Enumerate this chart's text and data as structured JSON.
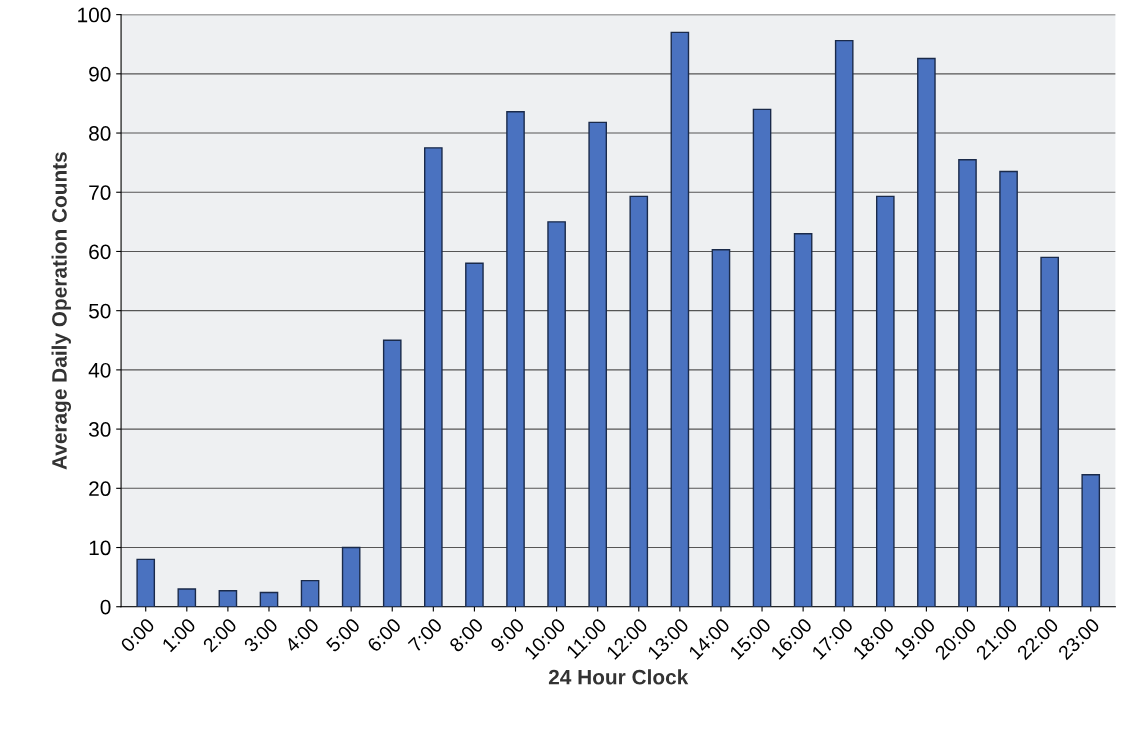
{
  "chart_data": {
    "type": "bar",
    "xlabel": "24 Hour Clock",
    "ylabel": "Average Daily Operation Counts",
    "categories": [
      "0:00",
      "1:00",
      "2:00",
      "3:00",
      "4:00",
      "5:00",
      "6:00",
      "7:00",
      "8:00",
      "9:00",
      "10:00",
      "11:00",
      "12:00",
      "13:00",
      "14:00",
      "15:00",
      "16:00",
      "17:00",
      "18:00",
      "19:00",
      "20:00",
      "21:00",
      "22:00",
      "23:00"
    ],
    "values": [
      8,
      3,
      2.7,
      2.4,
      4.4,
      10,
      45,
      77.5,
      58,
      83.6,
      65,
      81.8,
      69.3,
      97,
      60.3,
      84,
      63,
      95.6,
      69.3,
      92.6,
      75.5,
      73.5,
      59,
      22.3
    ],
    "color": "#4a72c0",
    "ylim": [
      0,
      100
    ],
    "yticks": [
      0,
      10,
      20,
      30,
      40,
      50,
      60,
      70,
      80,
      90,
      100
    ],
    "grid": "y",
    "legend": false
  }
}
